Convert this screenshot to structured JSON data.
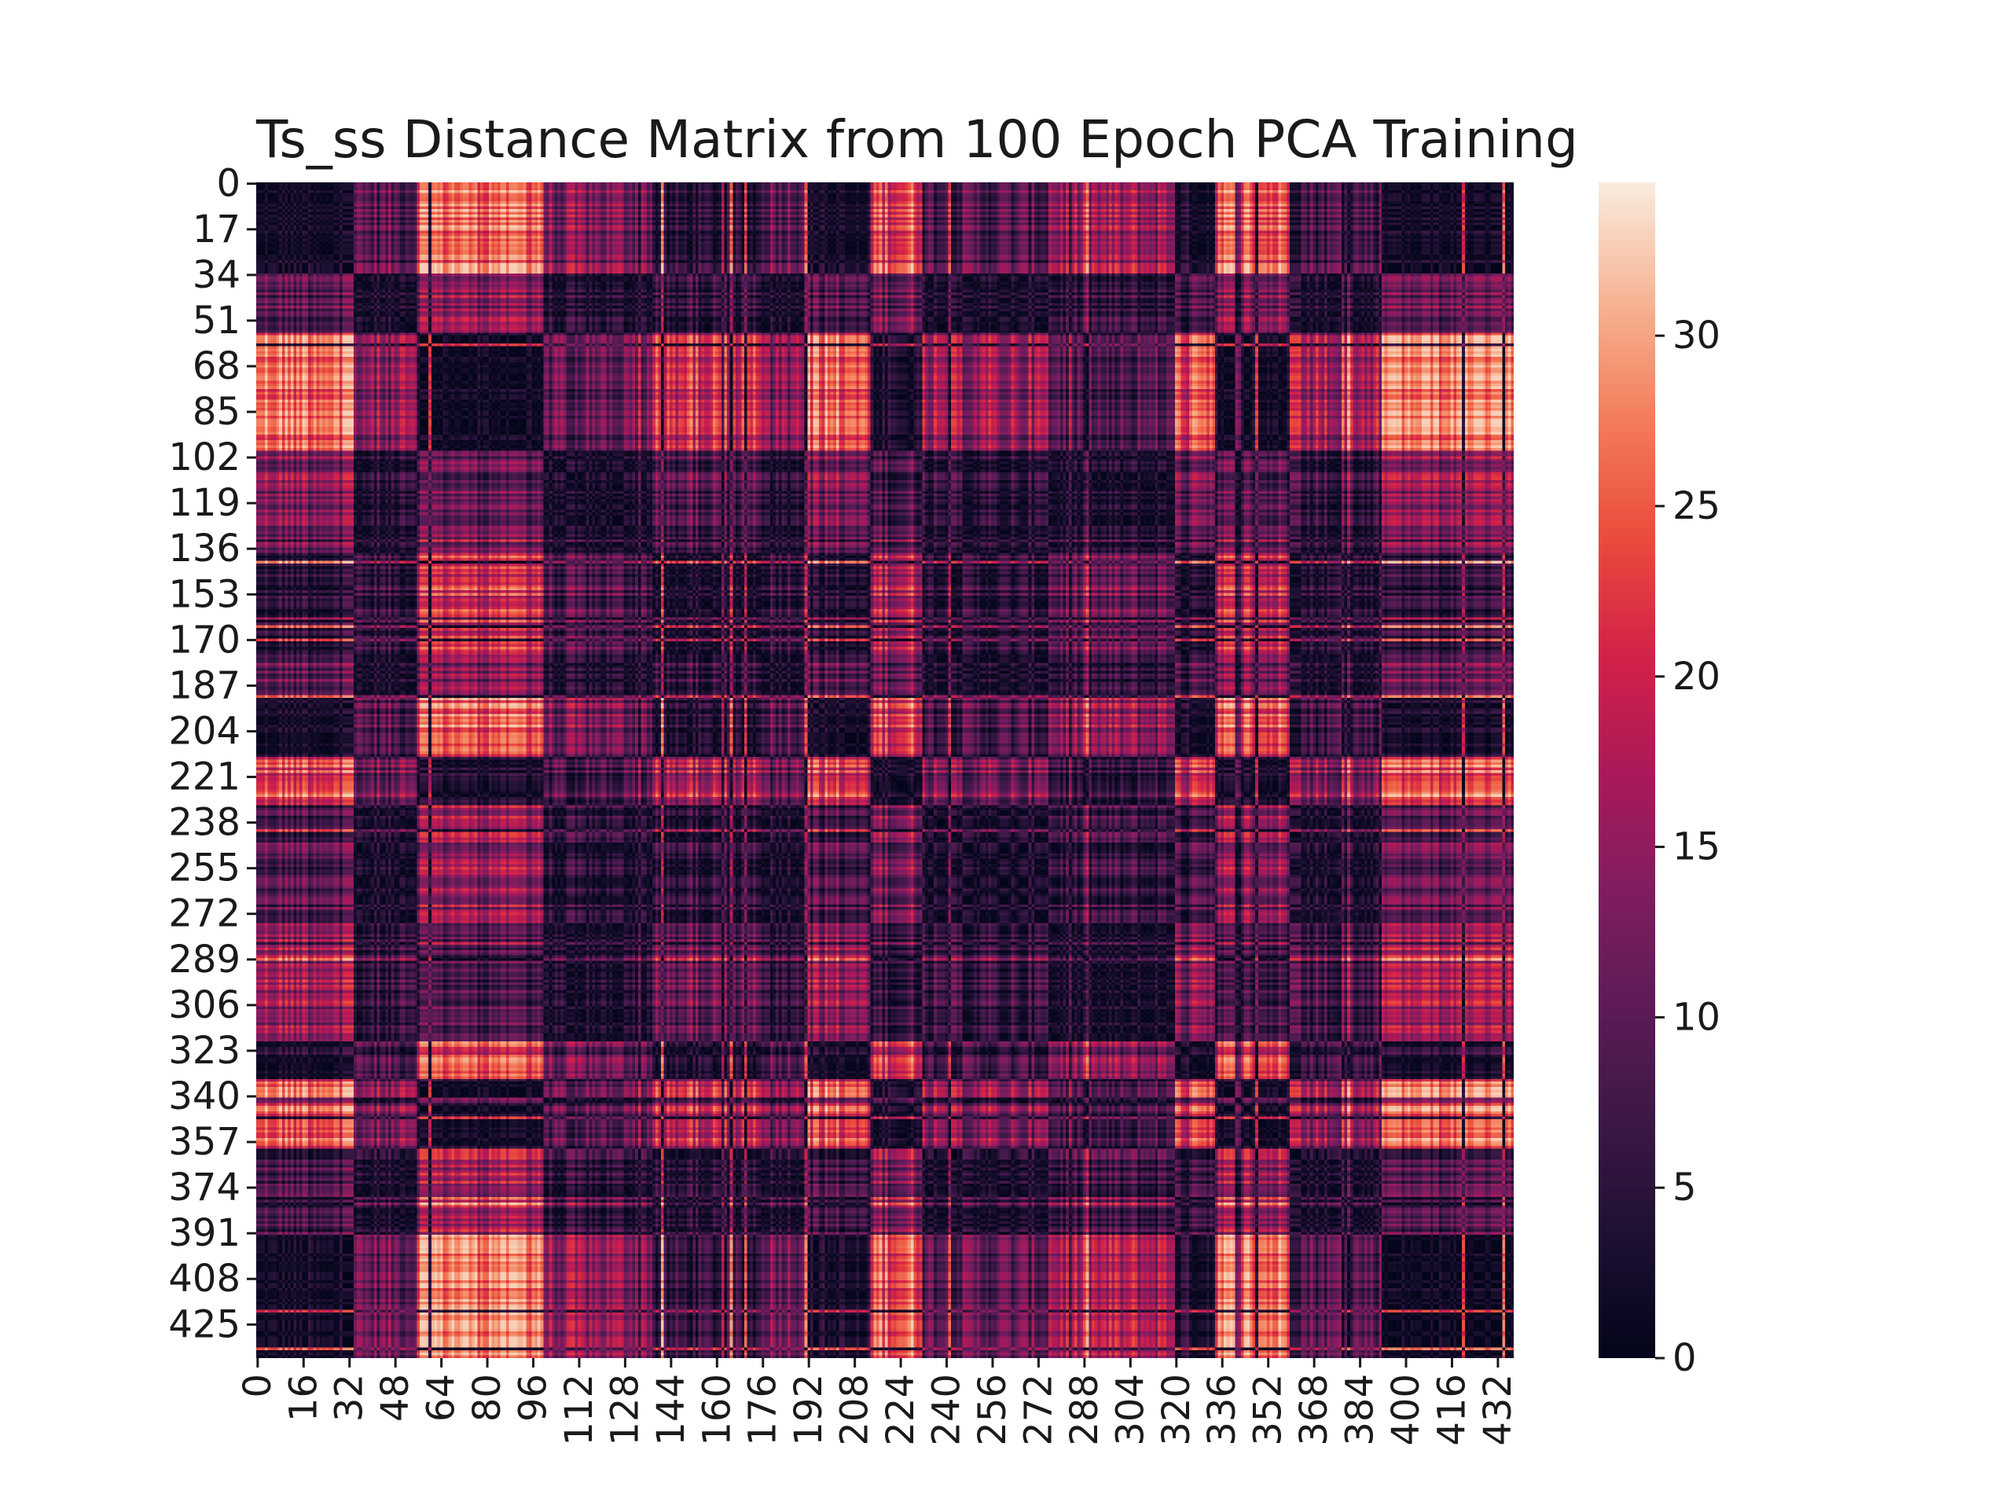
{
  "chart_data": {
    "type": "heatmap",
    "title": "Ts_ss Distance Matrix from 100 Epoch PCA Training",
    "n_rows": 438,
    "n_cols": 438,
    "y_tick_values": [
      0,
      17,
      34,
      51,
      68,
      85,
      102,
      119,
      136,
      153,
      170,
      187,
      204,
      221,
      238,
      255,
      272,
      289,
      306,
      323,
      340,
      357,
      374,
      391,
      408,
      425
    ],
    "x_tick_values": [
      0,
      16,
      32,
      48,
      64,
      80,
      96,
      112,
      128,
      144,
      160,
      176,
      192,
      208,
      224,
      240,
      256,
      272,
      288,
      304,
      320,
      336,
      352,
      368,
      384,
      400,
      416,
      432
    ],
    "colorbar": {
      "min": 0,
      "max": 34.5,
      "ticks": [
        0,
        5,
        10,
        15,
        20,
        25,
        30
      ],
      "colormap": "rocket"
    },
    "group_pattern_description_note": "",
    "cluster_segments": [
      {
        "start": 0,
        "end": 34,
        "level": 0.08
      },
      {
        "start": 34,
        "end": 56,
        "level": 0.45
      },
      {
        "start": 56,
        "end": 100,
        "level": 0.95
      },
      {
        "start": 100,
        "end": 138,
        "level": 0.55
      },
      {
        "start": 138,
        "end": 176,
        "level": 0.25
      },
      {
        "start": 176,
        "end": 192,
        "level": 0.5
      },
      {
        "start": 192,
        "end": 214,
        "level": 0.12
      },
      {
        "start": 214,
        "end": 232,
        "level": 0.85
      },
      {
        "start": 232,
        "end": 276,
        "level": 0.42
      },
      {
        "start": 276,
        "end": 320,
        "level": 0.62
      },
      {
        "start": 320,
        "end": 334,
        "level": 0.2
      },
      {
        "start": 334,
        "end": 360,
        "level": 0.88
      },
      {
        "start": 360,
        "end": 392,
        "level": 0.4
      },
      {
        "start": 392,
        "end": 438,
        "level": 0.05
      }
    ]
  }
}
